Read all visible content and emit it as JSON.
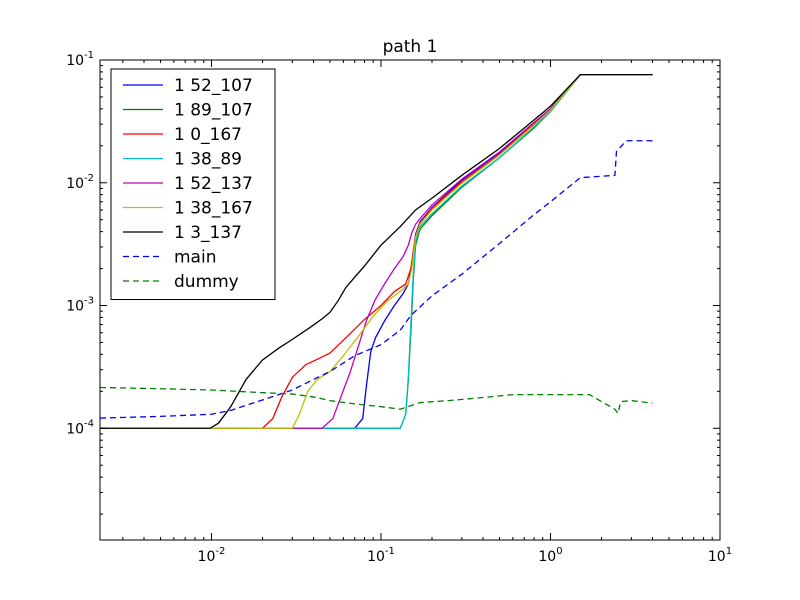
{
  "chart_data": {
    "type": "line",
    "title": "path 1",
    "xlabel": "",
    "ylabel": "",
    "xscale": "log",
    "yscale": "log",
    "xlim": [
      0.0022,
      10
    ],
    "ylim": [
      1.23e-05,
      0.1
    ],
    "grid": false,
    "legend_position": "top-left",
    "x_ticks": [
      {
        "base": "10",
        "exp": "-2",
        "value": 0.01
      },
      {
        "base": "10",
        "exp": "-1",
        "value": 0.1
      },
      {
        "base": "10",
        "exp": "0",
        "value": 1
      },
      {
        "base": "10",
        "exp": "1",
        "value": 10
      }
    ],
    "y_ticks": [
      {
        "base": "10",
        "exp": "-4",
        "value": 0.0001
      },
      {
        "base": "10",
        "exp": "-3",
        "value": 0.001
      },
      {
        "base": "10",
        "exp": "-2",
        "value": 0.01
      },
      {
        "base": "10",
        "exp": "-1",
        "value": 0.1
      }
    ],
    "series": [
      {
        "name": "1 52_107",
        "color": "#0000ff",
        "dash": "solid",
        "points": [
          [
            0.0022,
            0.0001
          ],
          [
            0.07,
            0.0001
          ],
          [
            0.078,
            0.00012
          ],
          [
            0.082,
            0.00022
          ],
          [
            0.087,
            0.00042
          ],
          [
            0.093,
            0.00055
          ],
          [
            0.105,
            0.00075
          ],
          [
            0.12,
            0.001
          ],
          [
            0.135,
            0.00125
          ],
          [
            0.145,
            0.0015
          ],
          [
            0.152,
            0.0022
          ],
          [
            0.16,
            0.0038
          ],
          [
            0.17,
            0.0048
          ],
          [
            0.2,
            0.0063
          ],
          [
            0.3,
            0.0105
          ],
          [
            0.5,
            0.0175
          ],
          [
            0.8,
            0.031
          ],
          [
            1.0,
            0.04
          ],
          [
            1.5,
            0.076
          ],
          [
            4.0,
            0.076
          ]
        ]
      },
      {
        "name": "1 89_107",
        "color": "#008000",
        "dash": "solid",
        "points": [
          [
            0.0022,
            0.0001
          ],
          [
            0.13,
            0.0001
          ],
          [
            0.14,
            0.00013
          ],
          [
            0.145,
            0.00025
          ],
          [
            0.15,
            0.0006
          ],
          [
            0.155,
            0.0016
          ],
          [
            0.16,
            0.0031
          ],
          [
            0.17,
            0.0042
          ],
          [
            0.2,
            0.0054
          ],
          [
            0.3,
            0.0092
          ],
          [
            0.5,
            0.016
          ],
          [
            0.8,
            0.028
          ],
          [
            1.0,
            0.038
          ],
          [
            1.5,
            0.076
          ],
          [
            4.0,
            0.076
          ]
        ]
      },
      {
        "name": "1 0_167",
        "color": "#ff0000",
        "dash": "solid",
        "points": [
          [
            0.0022,
            0.0001
          ],
          [
            0.02,
            0.0001
          ],
          [
            0.023,
            0.00012
          ],
          [
            0.026,
            0.00018
          ],
          [
            0.03,
            0.00026
          ],
          [
            0.036,
            0.00033
          ],
          [
            0.043,
            0.00037
          ],
          [
            0.05,
            0.00041
          ],
          [
            0.065,
            0.00058
          ],
          [
            0.08,
            0.00077
          ],
          [
            0.1,
            0.001
          ],
          [
            0.12,
            0.0013
          ],
          [
            0.14,
            0.0015
          ],
          [
            0.15,
            0.002
          ],
          [
            0.16,
            0.0037
          ],
          [
            0.17,
            0.0047
          ],
          [
            0.2,
            0.0062
          ],
          [
            0.3,
            0.0102
          ],
          [
            0.5,
            0.017
          ],
          [
            0.8,
            0.03
          ],
          [
            1.0,
            0.039
          ],
          [
            1.5,
            0.076
          ],
          [
            4.0,
            0.076
          ]
        ]
      },
      {
        "name": "1 38_89",
        "color": "#00bfbf",
        "dash": "solid",
        "points": [
          [
            0.0022,
            0.0001
          ],
          [
            0.13,
            0.0001
          ],
          [
            0.14,
            0.00013
          ],
          [
            0.145,
            0.00026
          ],
          [
            0.15,
            0.0007
          ],
          [
            0.155,
            0.0018
          ],
          [
            0.16,
            0.0033
          ],
          [
            0.17,
            0.0044
          ],
          [
            0.2,
            0.0056
          ],
          [
            0.3,
            0.0094
          ],
          [
            0.5,
            0.016
          ],
          [
            0.8,
            0.0285
          ],
          [
            1.0,
            0.038
          ],
          [
            1.5,
            0.076
          ],
          [
            4.0,
            0.076
          ]
        ]
      },
      {
        "name": "1 52_137",
        "color": "#bf00bf",
        "dash": "solid",
        "points": [
          [
            0.0022,
            0.0001
          ],
          [
            0.045,
            0.0001
          ],
          [
            0.052,
            0.00012
          ],
          [
            0.058,
            0.00018
          ],
          [
            0.066,
            0.00029
          ],
          [
            0.074,
            0.00048
          ],
          [
            0.082,
            0.00075
          ],
          [
            0.092,
            0.0011
          ],
          [
            0.105,
            0.0015
          ],
          [
            0.12,
            0.002
          ],
          [
            0.135,
            0.0025
          ],
          [
            0.145,
            0.0031
          ],
          [
            0.152,
            0.0039
          ],
          [
            0.16,
            0.0046
          ],
          [
            0.17,
            0.0051
          ],
          [
            0.2,
            0.0066
          ],
          [
            0.3,
            0.0107
          ],
          [
            0.5,
            0.0178
          ],
          [
            0.8,
            0.031
          ],
          [
            1.0,
            0.04
          ],
          [
            1.5,
            0.076
          ],
          [
            4.0,
            0.076
          ]
        ]
      },
      {
        "name": "1 38_167",
        "color": "#bfbf00",
        "dash": "solid",
        "points": [
          [
            0.0022,
            0.0001
          ],
          [
            0.03,
            0.0001
          ],
          [
            0.033,
            0.00013
          ],
          [
            0.037,
            0.0002
          ],
          [
            0.042,
            0.00025
          ],
          [
            0.05,
            0.00029
          ],
          [
            0.06,
            0.00039
          ],
          [
            0.075,
            0.00058
          ],
          [
            0.09,
            0.00082
          ],
          [
            0.11,
            0.0011
          ],
          [
            0.13,
            0.0013
          ],
          [
            0.145,
            0.0015
          ],
          [
            0.152,
            0.002
          ],
          [
            0.16,
            0.0036
          ],
          [
            0.17,
            0.0046
          ],
          [
            0.2,
            0.006
          ],
          [
            0.3,
            0.0099
          ],
          [
            0.5,
            0.0168
          ],
          [
            0.8,
            0.0295
          ],
          [
            1.0,
            0.039
          ],
          [
            1.5,
            0.076
          ],
          [
            4.0,
            0.076
          ]
        ]
      },
      {
        "name": "1 3_137",
        "color": "#000000",
        "dash": "solid",
        "points": [
          [
            0.0022,
            0.0001
          ],
          [
            0.0098,
            0.0001
          ],
          [
            0.011,
            0.00011
          ],
          [
            0.013,
            0.00015
          ],
          [
            0.016,
            0.00025
          ],
          [
            0.02,
            0.00036
          ],
          [
            0.025,
            0.00045
          ],
          [
            0.03,
            0.00053
          ],
          [
            0.038,
            0.00066
          ],
          [
            0.045,
            0.00078
          ],
          [
            0.05,
            0.00088
          ],
          [
            0.056,
            0.0011
          ],
          [
            0.062,
            0.0014
          ],
          [
            0.07,
            0.0017
          ],
          [
            0.08,
            0.0021
          ],
          [
            0.1,
            0.0031
          ],
          [
            0.13,
            0.0044
          ],
          [
            0.16,
            0.006
          ],
          [
            0.2,
            0.0075
          ],
          [
            0.3,
            0.0115
          ],
          [
            0.5,
            0.019
          ],
          [
            0.8,
            0.0325
          ],
          [
            1.0,
            0.042
          ],
          [
            1.5,
            0.076
          ],
          [
            4.0,
            0.076
          ]
        ]
      },
      {
        "name": "main",
        "color": "#0000ff",
        "dash": "dashed",
        "points": [
          [
            0.0022,
            0.000121
          ],
          [
            0.005,
            0.000125
          ],
          [
            0.01,
            0.00013
          ],
          [
            0.013,
            0.00014
          ],
          [
            0.02,
            0.00017
          ],
          [
            0.03,
            0.000205
          ],
          [
            0.04,
            0.00025
          ],
          [
            0.05,
            0.00029
          ],
          [
            0.07,
            0.00039
          ],
          [
            0.1,
            0.00048
          ],
          [
            0.13,
            0.00063
          ],
          [
            0.15,
            0.00083
          ],
          [
            0.2,
            0.0012
          ],
          [
            0.3,
            0.0018
          ],
          [
            0.5,
            0.0032
          ],
          [
            0.8,
            0.0055
          ],
          [
            1.0,
            0.007
          ],
          [
            1.5,
            0.011
          ],
          [
            2.0,
            0.0113
          ],
          [
            2.4,
            0.0115
          ],
          [
            2.45,
            0.018
          ],
          [
            2.8,
            0.022
          ],
          [
            4.0,
            0.022
          ]
        ]
      },
      {
        "name": "dummy",
        "color": "#008000",
        "dash": "dashed",
        "points": [
          [
            0.0022,
            0.000215
          ],
          [
            0.005,
            0.00021
          ],
          [
            0.01,
            0.000205
          ],
          [
            0.02,
            0.000195
          ],
          [
            0.03,
            0.00019
          ],
          [
            0.04,
            0.00018
          ],
          [
            0.05,
            0.000168
          ],
          [
            0.07,
            0.000158
          ],
          [
            0.1,
            0.00015
          ],
          [
            0.13,
            0.000143
          ],
          [
            0.17,
            0.000162
          ],
          [
            0.25,
            0.000168
          ],
          [
            0.4,
            0.000178
          ],
          [
            0.6,
            0.000188
          ],
          [
            1.0,
            0.000188
          ],
          [
            1.7,
            0.000188
          ],
          [
            2.0,
            0.000165
          ],
          [
            2.4,
            0.000143
          ],
          [
            2.5,
            0.000132
          ],
          [
            2.6,
            0.000165
          ],
          [
            3.0,
            0.000168
          ],
          [
            4.0,
            0.00016
          ]
        ]
      }
    ]
  }
}
